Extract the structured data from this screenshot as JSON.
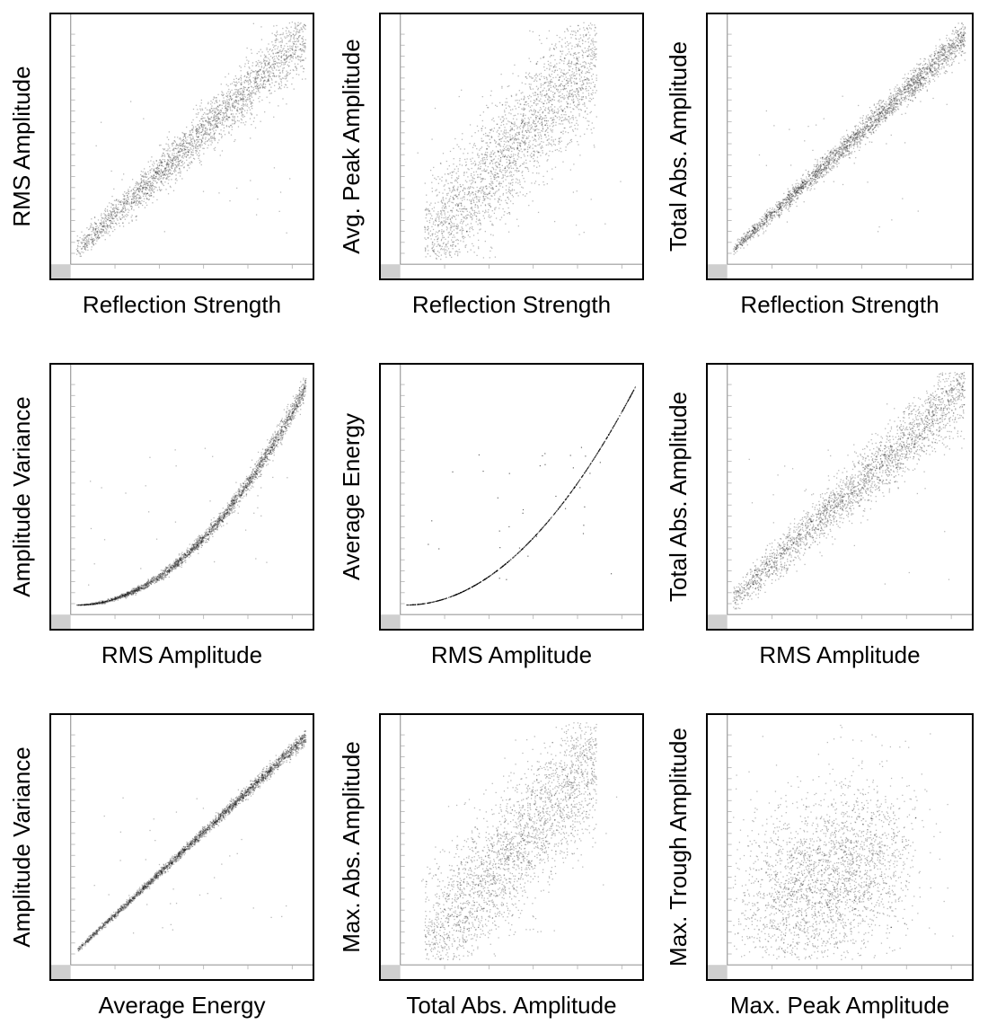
{
  "figure": {
    "background": "#ffffff",
    "point_color": "#000000",
    "axis_strip_color": "#cfcfcf"
  },
  "chart_data": [
    {
      "id": "p1",
      "type": "scatter",
      "xlabel": "Reflection Strength",
      "ylabel": "RMS Amplitude",
      "title": "",
      "shape": "linear_band",
      "trend": "strong positive linear",
      "density": "dense",
      "spread": 0.06
    },
    {
      "id": "p2",
      "type": "scatter",
      "xlabel": "Reflection Strength",
      "ylabel": "Avg. Peak Amplitude",
      "title": "",
      "shape": "wide_cloud",
      "trend": "positive linear, broad spread",
      "density": "dense",
      "spread": 0.13
    },
    {
      "id": "p3",
      "type": "scatter",
      "xlabel": "Reflection Strength",
      "ylabel": "Total Abs. Amplitude",
      "title": "",
      "shape": "linear_band",
      "trend": "very strong positive linear",
      "density": "dense",
      "spread": 0.03
    },
    {
      "id": "p4",
      "type": "scatter",
      "xlabel": "RMS Amplitude",
      "ylabel": "Amplitude Variance",
      "title": "",
      "shape": "quadratic_band",
      "trend": "positive quadratic",
      "density": "dense",
      "spread": 0.025
    },
    {
      "id": "p5",
      "type": "scatter",
      "xlabel": "RMS Amplitude",
      "ylabel": "Average Energy",
      "title": "",
      "shape": "quadratic_line",
      "trend": "exact quadratic",
      "density": "thin line",
      "spread": 0.0
    },
    {
      "id": "p6",
      "type": "scatter",
      "xlabel": "RMS Amplitude",
      "ylabel": "Total Abs. Amplitude",
      "title": "",
      "shape": "linear_band",
      "trend": "strong positive linear",
      "density": "dense",
      "spread": 0.07
    },
    {
      "id": "p7",
      "type": "scatter",
      "xlabel": "Average Energy",
      "ylabel": "Amplitude Variance",
      "title": "",
      "shape": "linear_band",
      "trend": "near exact linear",
      "density": "dense",
      "spread": 0.012
    },
    {
      "id": "p8",
      "type": "scatter",
      "xlabel": "Total Abs. Amplitude",
      "ylabel": "Max. Abs. Amplitude",
      "title": "",
      "shape": "wide_cloud",
      "trend": "positive, broad fan",
      "density": "dense",
      "spread": 0.14
    },
    {
      "id": "p9",
      "type": "scatter",
      "xlabel": "Max. Peak Amplitude",
      "ylabel": "Max. Trough Amplitude",
      "title": "",
      "shape": "diffuse_cloud",
      "trend": "weak positive, diffuse",
      "density": "dense",
      "spread": 0.22
    }
  ]
}
